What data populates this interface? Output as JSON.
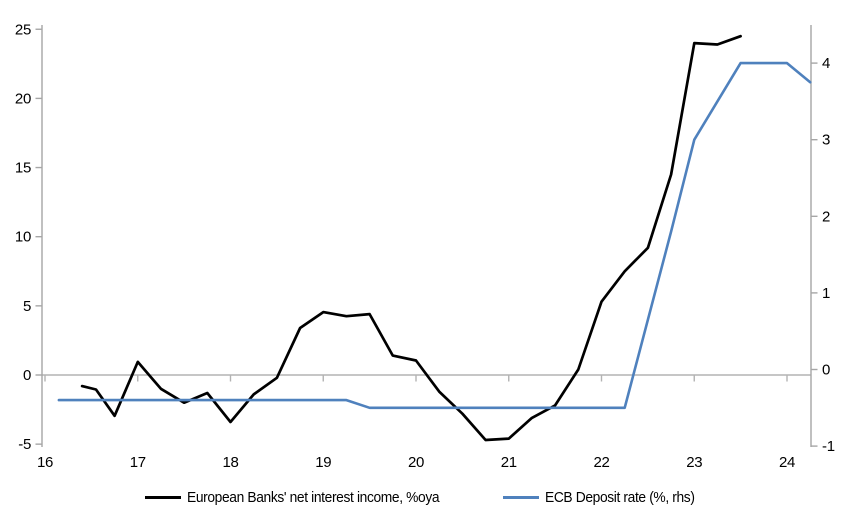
{
  "chart_data": {
    "type": "line",
    "title": "",
    "legend_position": "bottom-center",
    "grid": "zero-line-only",
    "x_axis": {
      "label": "",
      "ticks": [
        16,
        17,
        18,
        19,
        20,
        21,
        22,
        23,
        24
      ],
      "min": 16,
      "max": 24.28
    },
    "left_axis": {
      "label": "",
      "ticks": [
        -5,
        0,
        5,
        10,
        15,
        20,
        25
      ],
      "min": -5.2,
      "max": 25.3
    },
    "right_axis": {
      "label": "",
      "ticks": [
        -1,
        0,
        1,
        2,
        3,
        4
      ],
      "min": -1.02,
      "max": 4.5
    },
    "colors": {
      "nii_line": "#000000",
      "ecb_line": "#4F81BD",
      "axis": "#A6A6A6",
      "zero_line": "#B3B3B3",
      "text": "#000000"
    },
    "series": [
      {
        "name": "European Banks' net interest income, %oya",
        "axis": "left",
        "color": "#000000",
        "stroke_width": 2.7,
        "points": [
          [
            16.4,
            -0.8
          ],
          [
            16.55,
            -1.05
          ],
          [
            16.75,
            -2.95
          ],
          [
            17.0,
            0.95
          ],
          [
            17.25,
            -1.0
          ],
          [
            17.5,
            -2.0
          ],
          [
            17.75,
            -1.3
          ],
          [
            18.0,
            -3.4
          ],
          [
            18.25,
            -1.4
          ],
          [
            18.5,
            -0.2
          ],
          [
            18.75,
            3.4
          ],
          [
            19.0,
            4.55
          ],
          [
            19.25,
            4.25
          ],
          [
            19.5,
            4.4
          ],
          [
            19.75,
            1.4
          ],
          [
            20.0,
            1.05
          ],
          [
            20.25,
            -1.2
          ],
          [
            20.5,
            -2.8
          ],
          [
            20.75,
            -4.7
          ],
          [
            21.0,
            -4.6
          ],
          [
            21.25,
            -3.1
          ],
          [
            21.5,
            -2.2
          ],
          [
            21.75,
            0.4
          ],
          [
            22.0,
            5.3
          ],
          [
            22.25,
            7.5
          ],
          [
            22.5,
            9.2
          ],
          [
            22.75,
            14.5
          ],
          [
            23.0,
            24.0
          ],
          [
            23.25,
            23.9
          ],
          [
            23.5,
            24.5
          ]
        ]
      },
      {
        "name": "ECB Deposit rate (%, rhs)",
        "axis": "right",
        "color": "#4F81BD",
        "stroke_width": 2.6,
        "points": [
          [
            16.15,
            -0.4
          ],
          [
            16.25,
            -0.4
          ],
          [
            16.5,
            -0.4
          ],
          [
            16.75,
            -0.4
          ],
          [
            17.0,
            -0.4
          ],
          [
            17.25,
            -0.4
          ],
          [
            17.5,
            -0.4
          ],
          [
            17.75,
            -0.4
          ],
          [
            18.0,
            -0.4
          ],
          [
            18.25,
            -0.4
          ],
          [
            18.5,
            -0.4
          ],
          [
            18.75,
            -0.4
          ],
          [
            19.0,
            -0.4
          ],
          [
            19.25,
            -0.4
          ],
          [
            19.5,
            -0.5
          ],
          [
            19.75,
            -0.5
          ],
          [
            20.0,
            -0.5
          ],
          [
            20.25,
            -0.5
          ],
          [
            20.5,
            -0.5
          ],
          [
            20.75,
            -0.5
          ],
          [
            21.0,
            -0.5
          ],
          [
            21.25,
            -0.5
          ],
          [
            21.5,
            -0.5
          ],
          [
            21.75,
            -0.5
          ],
          [
            22.0,
            -0.5
          ],
          [
            22.25,
            -0.5
          ],
          [
            22.5,
            0.65
          ],
          [
            22.75,
            1.8
          ],
          [
            23.0,
            3.0
          ],
          [
            23.25,
            3.5
          ],
          [
            23.5,
            4.0
          ],
          [
            23.75,
            4.0
          ],
          [
            24.0,
            4.0
          ],
          [
            24.25,
            3.75
          ]
        ]
      }
    ]
  }
}
